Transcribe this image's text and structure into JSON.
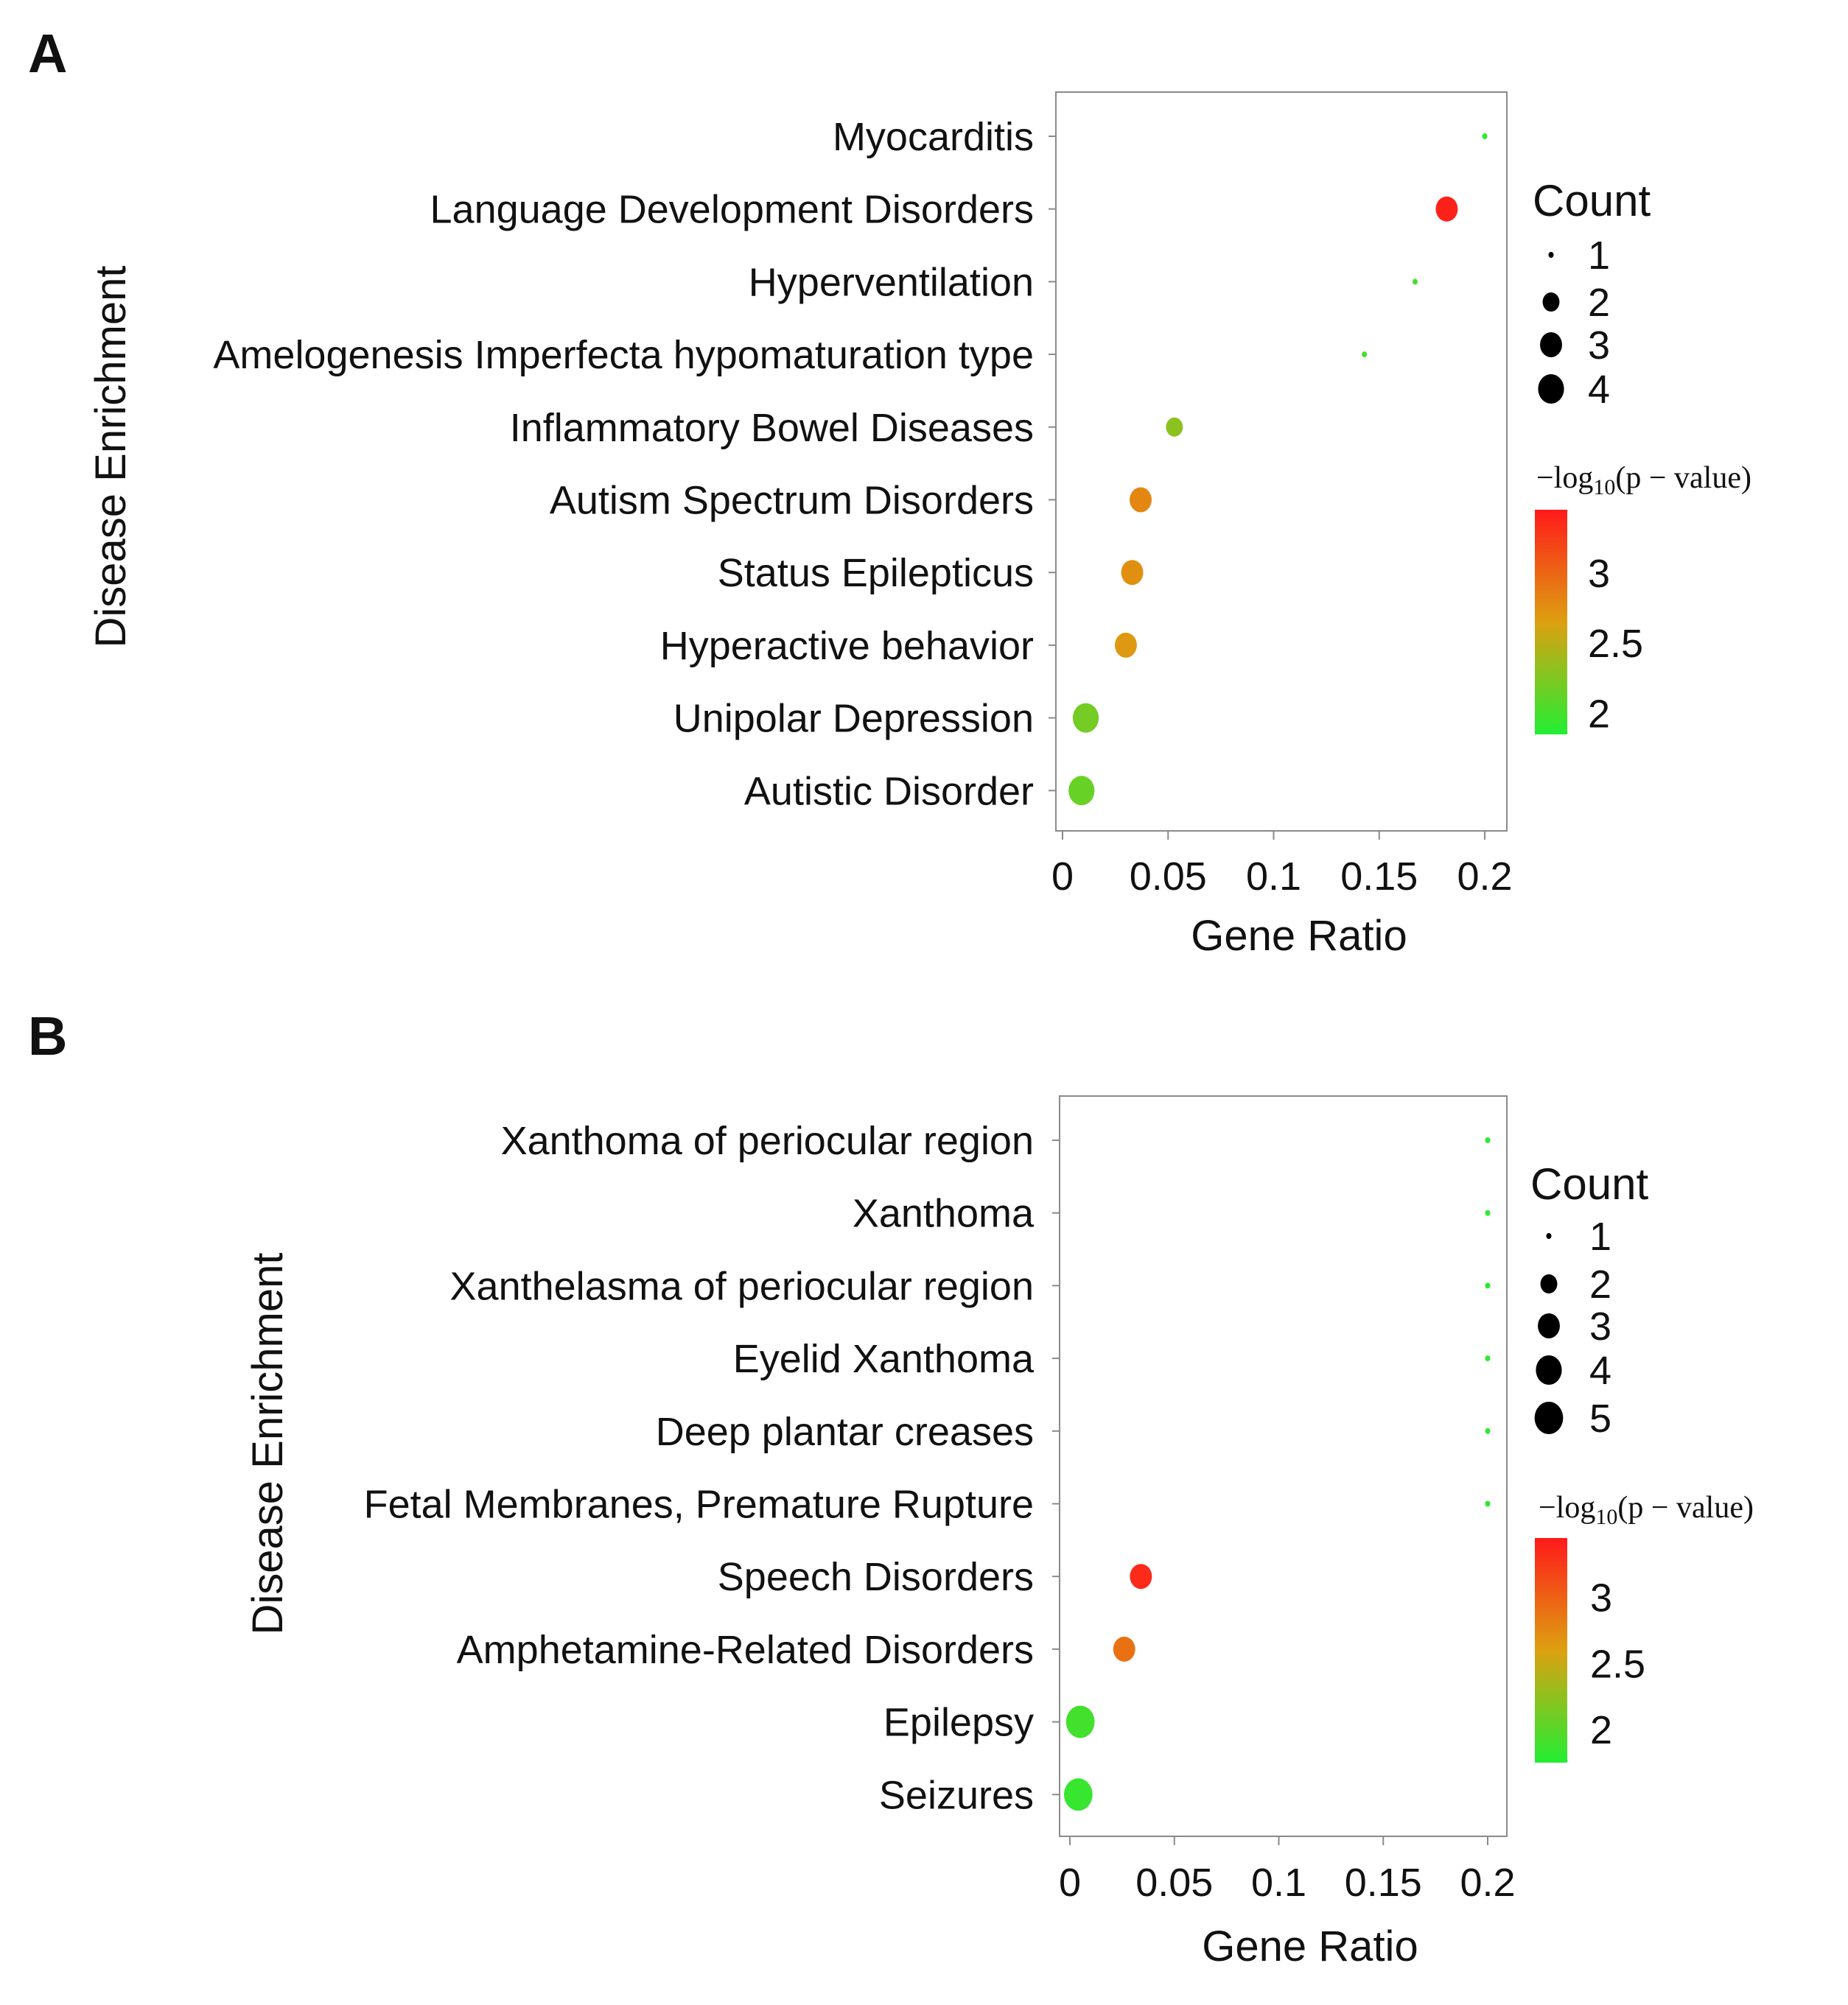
{
  "chart_data": [
    {
      "panel": "A",
      "type": "scatter",
      "xlabel": "Gene Ratio",
      "ylabel": "Disease Enrichment",
      "xlim": [
        0,
        0.2
      ],
      "xticks": [
        0,
        0.05,
        0.1,
        0.15,
        0.2
      ],
      "xtick_labels": [
        "0",
        "0.05",
        "0.1",
        "0.15",
        "0.2"
      ],
      "grid": false,
      "size_legend": {
        "title": "Count",
        "values": [
          1,
          2,
          3,
          4
        ]
      },
      "color_legend": {
        "title": "−log₁₀(p − value)",
        "title_parts": [
          "−log",
          "10",
          "(p − value)"
        ],
        "range": [
          1.85,
          3.45
        ],
        "ticks": [
          3,
          2.5,
          2
        ],
        "tick_labels": [
          "3",
          "2.5",
          "2"
        ],
        "color_low": "#22ee33",
        "color_mid": "#dda010",
        "color_high": "#ff1a1a"
      },
      "categories": [
        "Myocarditis",
        "Language Development Disorders",
        "Hyperventilation",
        "Amelogenesis Imperfecta hypomaturation type",
        "Inflammatory Bowel Diseases",
        "Autism Spectrum Disorders",
        "Status Epilepticus",
        "Hyperactive behavior",
        "Unipolar Depression",
        "Autistic Disorder"
      ],
      "gene_ratio": [
        0.2,
        0.182,
        0.167,
        0.143,
        0.053,
        0.037,
        0.033,
        0.03,
        0.011,
        0.009
      ],
      "count": [
        1,
        3,
        1,
        1,
        2,
        3,
        3,
        3,
        4,
        4
      ],
      "neg_log10_p": [
        1.9,
        3.4,
        2.0,
        2.0,
        2.3,
        2.8,
        2.75,
        2.7,
        2.2,
        2.15
      ]
    },
    {
      "panel": "B",
      "type": "scatter",
      "xlabel": "Gene Ratio",
      "ylabel": "Disease Enrichment",
      "xlim": [
        0,
        0.2
      ],
      "xticks": [
        0,
        0.05,
        0.1,
        0.15,
        0.2
      ],
      "xtick_labels": [
        "0",
        "0.05",
        "0.1",
        "0.15",
        "0.2"
      ],
      "grid": false,
      "size_legend": {
        "title": "Count",
        "values": [
          1,
          2,
          3,
          4,
          5
        ]
      },
      "color_legend": {
        "title": "−log₁₀(p − value)",
        "title_parts": [
          "−log",
          "10",
          "(p − value)"
        ],
        "range": [
          1.75,
          3.45
        ],
        "ticks": [
          3,
          2.5,
          2
        ],
        "tick_labels": [
          "3",
          "2.5",
          "2"
        ],
        "color_low": "#22ee33",
        "color_mid": "#dda010",
        "color_high": "#ff1a1a"
      },
      "categories": [
        "Xanthoma of periocular region",
        "Xanthoma",
        "Xanthelasma of periocular region",
        "Eyelid Xanthoma",
        "Deep plantar creases",
        "Fetal Membranes, Premature Rupture",
        "Speech Disorders",
        "Amphetamine-Related Disorders",
        "Epilepsy",
        "Seizures"
      ],
      "gene_ratio": [
        0.2,
        0.2,
        0.2,
        0.2,
        0.2,
        0.2,
        0.034,
        0.026,
        0.005,
        0.004
      ],
      "count": [
        1,
        1,
        1,
        1,
        1,
        1,
        3,
        3,
        5,
        5
      ],
      "neg_log10_p": [
        1.8,
        1.8,
        1.8,
        1.8,
        1.8,
        1.8,
        3.35,
        2.9,
        1.9,
        1.85
      ]
    }
  ]
}
